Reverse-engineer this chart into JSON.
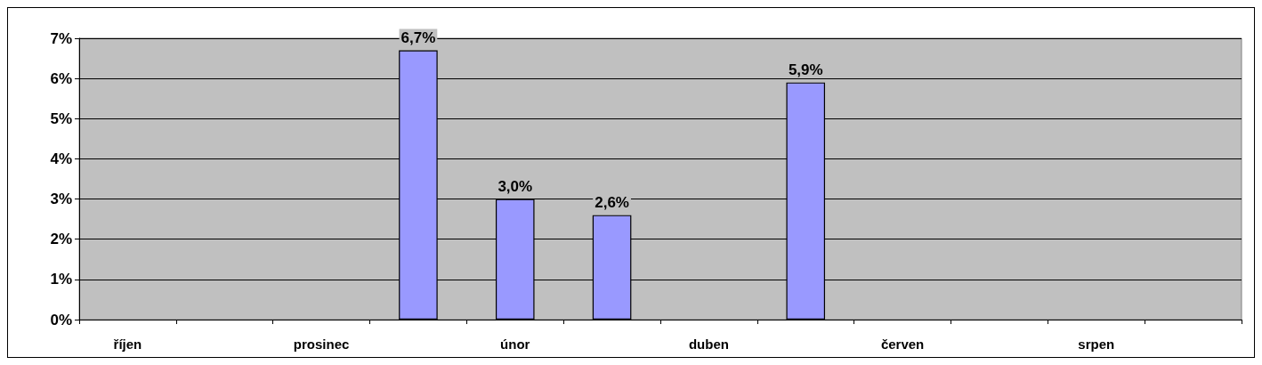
{
  "chart_data": {
    "type": "bar",
    "categories": [
      "říjen",
      null,
      "prosinec",
      null,
      "únor",
      null,
      "duben",
      null,
      "červen",
      null,
      "srpen",
      null
    ],
    "values": [
      null,
      null,
      null,
      6.7,
      3.0,
      2.6,
      null,
      5.9,
      null,
      null,
      null,
      null
    ],
    "value_labels": [
      null,
      null,
      null,
      "6,7%",
      "3,0%",
      "2,6%",
      null,
      "5,9%",
      null,
      null,
      null,
      null
    ],
    "color": "#9999ff",
    "ylim": [
      0,
      7
    ],
    "yticks": [
      {
        "value": 0,
        "label": "0%"
      },
      {
        "value": 1,
        "label": "1%"
      },
      {
        "value": 2,
        "label": "2%"
      },
      {
        "value": 3,
        "label": "3%"
      },
      {
        "value": 4,
        "label": "4%"
      },
      {
        "value": 5,
        "label": "5%"
      },
      {
        "value": 6,
        "label": "6%"
      },
      {
        "value": 7,
        "label": "7%"
      }
    ],
    "grid": "y"
  }
}
